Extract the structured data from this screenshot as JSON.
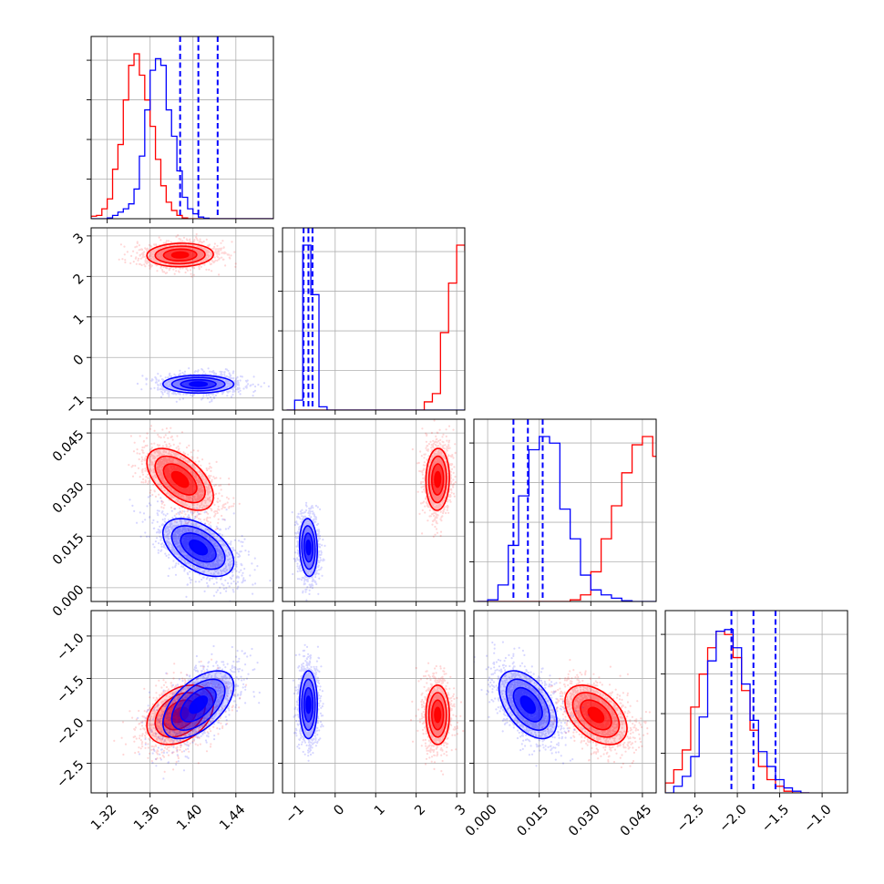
{
  "chart_data": {
    "type": "corner",
    "title": "",
    "grid": true,
    "quantile_style": "dashed",
    "series": [
      {
        "color": "#ff0000",
        "hist": {
          "p0": {
            "start": 1.3,
            "step": 0.005,
            "counts": [
              0.005,
              0.015,
              0.02,
              0.06,
              0.12,
              0.3,
              0.45,
              0.72,
              0.93,
              1.0,
              0.87,
              0.72,
              0.56,
              0.36,
              0.2,
              0.1,
              0.05,
              0.02,
              0.005,
              0,
              0,
              0,
              0,
              0,
              0,
              0,
              0,
              0,
              0,
              0,
              0,
              0,
              0,
              0,
              0,
              0
            ]
          },
          "p1": {
            "start": -1.2,
            "step": 0.2,
            "counts": [
              0,
              0,
              0,
              0,
              0,
              0,
              0,
              0,
              0,
              0,
              0,
              0,
              0,
              0,
              0,
              0,
              0,
              0.05,
              0.1,
              0.47,
              0.77,
              1.0,
              0.97,
              0.22
            ]
          },
          "p2": {
            "start": -0.003,
            "step": 0.003,
            "counts": [
              0,
              0,
              0,
              0,
              0,
              0,
              0,
              0,
              0,
              0.01,
              0.04,
              0.18,
              0.38,
              0.58,
              0.78,
              0.95,
              1.0,
              0.88,
              0.62,
              0.35,
              0.16,
              0.06,
              0.02,
              0.005,
              0
            ]
          },
          "p3": {
            "start": -2.95,
            "step": 0.1,
            "counts": [
              0.01,
              0.06,
              0.14,
              0.26,
              0.52,
              0.72,
              0.88,
              0.98,
              0.96,
              0.82,
              0.62,
              0.38,
              0.16,
              0.08,
              0.04,
              0.01,
              0,
              0
            ]
          }
        },
        "samples": [
          {
            "mean": [
              1.388,
              2.53,
              0.0315,
              -1.93
            ],
            "sd": [
              0.0155,
              0.145,
              0.0045,
              0.175
            ]
          }
        ],
        "corr": {
          "0-1": 0.05,
          "0-2": -0.55,
          "0-3": 0.35,
          "1-2": 0.05,
          "1-3": 0.0,
          "2-3": -0.45
        }
      },
      {
        "color": "#0000ff",
        "hist": {
          "p0": {
            "start": 1.3,
            "step": 0.005,
            "counts": [
              0,
              0,
              0,
              0,
              0.005,
              0.02,
              0.04,
              0.06,
              0.09,
              0.18,
              0.38,
              0.66,
              0.9,
              0.97,
              0.93,
              0.66,
              0.5,
              0.29,
              0.13,
              0.06,
              0.03,
              0.01,
              0.003,
              0,
              0,
              0,
              0,
              0,
              0,
              0,
              0,
              0,
              0,
              0,
              0,
              0
            ]
          },
          "p1": {
            "start": -1.2,
            "step": 0.2,
            "counts": [
              0,
              0.06,
              1.0,
              0.7,
              0.02,
              0,
              0,
              0,
              0,
              0,
              0,
              0,
              0,
              0,
              0,
              0,
              0,
              0,
              0,
              0,
              0,
              0,
              0,
              0
            ]
          },
          "p2": {
            "start": -0.003,
            "step": 0.003,
            "counts": [
              0,
              0.01,
              0.1,
              0.34,
              0.64,
              0.92,
              1.0,
              0.96,
              0.56,
              0.38,
              0.16,
              0.07,
              0.04,
              0.02,
              0.005,
              0,
              0,
              0,
              0,
              0,
              0,
              0,
              0,
              0,
              0
            ]
          },
          "p3": {
            "start": -2.95,
            "step": 0.1,
            "counts": [
              0,
              0,
              0.04,
              0.1,
              0.22,
              0.46,
              0.8,
              0.98,
              0.99,
              0.88,
              0.66,
              0.44,
              0.25,
              0.16,
              0.08,
              0.03,
              0.01,
              0
            ]
          }
        },
        "samples": [
          {
            "mean": [
              1.405,
              -0.66,
              0.0117,
              -1.81
            ],
            "sd": [
              0.0165,
              0.11,
              0.0042,
              0.2
            ]
          }
        ],
        "corr": {
          "0-1": 0.0,
          "0-2": -0.5,
          "0-3": 0.55,
          "1-2": -0.1,
          "1-3": 0.0,
          "2-3": -0.5
        },
        "quantiles": {
          "p0": [
            1.388,
            1.405,
            1.423
          ],
          "p1": [
            -0.78,
            -0.66,
            -0.56
          ],
          "p2": [
            0.0075,
            0.0117,
            0.016
          ],
          "p3": [
            -2.07,
            -1.81,
            -1.55
          ]
        }
      }
    ],
    "params": [
      {
        "lim": [
          1.305,
          1.475
        ],
        "ticks": [
          1.32,
          1.36,
          1.4,
          1.44
        ],
        "tick_labels": [
          "1.32",
          "1.36",
          "1.40",
          "1.44"
        ]
      },
      {
        "lim": [
          -1.3,
          3.2
        ],
        "ticks": [
          -1,
          0,
          1,
          2,
          3
        ],
        "tick_labels": [
          "−1",
          "0",
          "1",
          "2",
          "3"
        ]
      },
      {
        "lim": [
          -0.004,
          0.049
        ],
        "ticks": [
          0.0,
          0.015,
          0.03,
          0.045
        ],
        "tick_labels": [
          "0.000",
          "0.015",
          "0.030",
          "0.045"
        ]
      },
      {
        "lim": [
          -2.85,
          -0.7
        ],
        "ticks": [
          -2.5,
          -2.0,
          -1.5,
          -1.0
        ],
        "tick_labels": [
          "−2.5",
          "−2.0",
          "−1.5",
          "−1.0"
        ]
      }
    ]
  }
}
